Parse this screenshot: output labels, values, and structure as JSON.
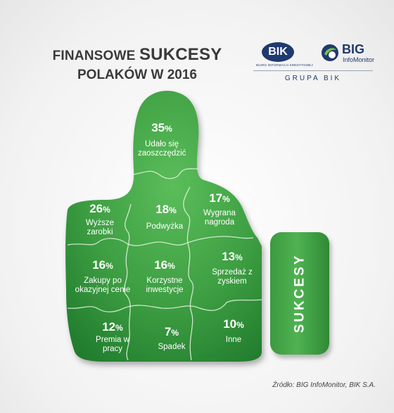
{
  "title": {
    "line1_prefix": "FINANSOWE",
    "line1_emph": "SUKCESY",
    "line2": "POLAKÓW W 2016"
  },
  "logos": {
    "bik": {
      "name": "BIK",
      "subtitle": "BIURO INFORMACJI KREDYTOWEJ",
      "color": "#1f3a6e"
    },
    "big": {
      "name": "BIG",
      "subtitle": "InfoMonitor",
      "color": "#1f3a6e"
    },
    "group": "GRUPA BIK"
  },
  "cuff_label": "SUKCESY",
  "source": "Źródło: BIG InfoMonitor, BIK S.A.",
  "colors": {
    "green_light": "#4fb552",
    "green_dark": "#1f7a2c",
    "seam": "#e6f3e2",
    "cuff": "#3c9a40"
  },
  "chart_data": {
    "type": "table",
    "unit": "%",
    "title": "FINANSOWE SUKCESY POLAKÓW W 2016",
    "items": [
      {
        "value": 35,
        "label": "Udało się zaoszczędzić"
      },
      {
        "value": 26,
        "label": "Wyższe zarobki"
      },
      {
        "value": 18,
        "label": "Podwyżka"
      },
      {
        "value": 17,
        "label": "Wygrana nagroda"
      },
      {
        "value": 16,
        "label": "Zakupy po okazyjnej cenie"
      },
      {
        "value": 16,
        "label": "Korzystne inwestycje"
      },
      {
        "value": 13,
        "label": "Sprzedaż z zyskiem"
      },
      {
        "value": 12,
        "label": "Premia w pracy"
      },
      {
        "value": 7,
        "label": "Spadek"
      },
      {
        "value": 10,
        "label": "Inne"
      }
    ]
  }
}
